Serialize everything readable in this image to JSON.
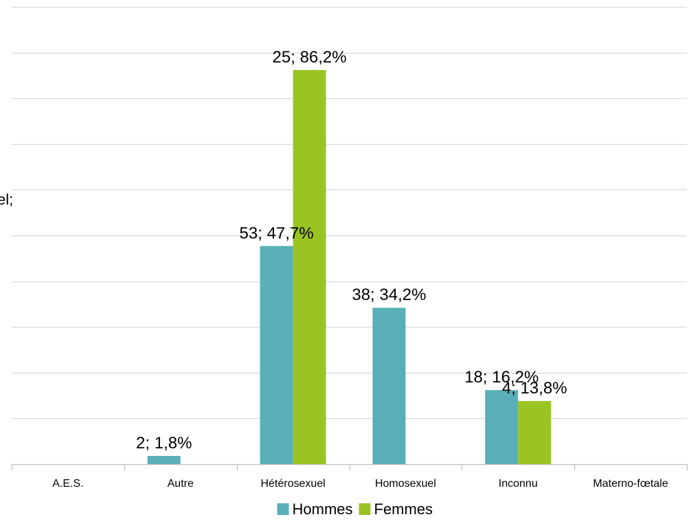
{
  "chart_data": {
    "type": "bar",
    "categories": [
      "A.E.S.",
      "Autre",
      "Hétérosexuel",
      "Homosexuel",
      "Inconnu",
      "Materno-fœtale"
    ],
    "series": [
      {
        "name": "Hommes",
        "color": "#5aafb8",
        "values": [
          null,
          1.8,
          47.7,
          34.2,
          16.2,
          null
        ],
        "labels": [
          null,
          "2; 1,8%",
          "53; 47,7%",
          "38; 34,2%",
          "18; 16,2%",
          null
        ]
      },
      {
        "name": "Femmes",
        "color": "#9ac424",
        "values": [
          null,
          null,
          86.2,
          null,
          13.8,
          null
        ],
        "labels": [
          null,
          null,
          "25; 86,2%",
          null,
          "4; 13,8%",
          null
        ]
      }
    ],
    "ylim": [
      0,
      100
    ],
    "grid": true,
    "legend_position": "bottom",
    "partial_left_label": "el;"
  }
}
